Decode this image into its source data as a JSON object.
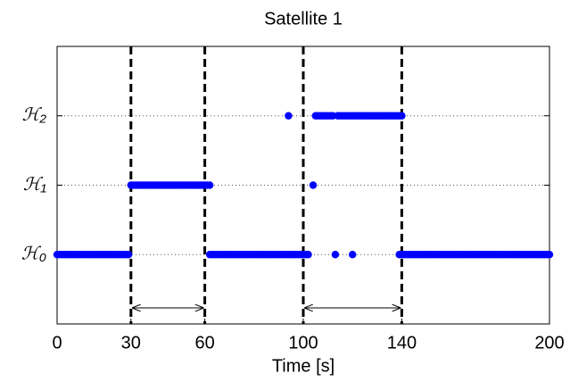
{
  "chart_data": {
    "type": "scatter",
    "title": "Satellite 1",
    "xlabel": "Time [s]",
    "xlim": [
      0,
      200
    ],
    "xticks": [
      0,
      30,
      60,
      100,
      140,
      200
    ],
    "ylim": [
      -1,
      3
    ],
    "yticks": [
      {
        "value": 0,
        "label": "ℋ₀"
      },
      {
        "value": 1,
        "label": "ℋ₁"
      },
      {
        "value": 2,
        "label": "ℋ₂"
      }
    ],
    "grid": true,
    "vlines": [
      30,
      60,
      100,
      140
    ],
    "arrows": [
      [
        30,
        60
      ],
      [
        100,
        140
      ]
    ],
    "series": [
      {
        "color": "#0000ff",
        "level": 0,
        "x": [
          0,
          1,
          2,
          3,
          4,
          5,
          6,
          7,
          8,
          9,
          10,
          11,
          12,
          13,
          14,
          15,
          16,
          17,
          18,
          19,
          20,
          21,
          22,
          23,
          24,
          25,
          26,
          27,
          28,
          29,
          62,
          63,
          64,
          65,
          66,
          67,
          68,
          69,
          70,
          71,
          72,
          73,
          74,
          75,
          76,
          77,
          78,
          79,
          80,
          81,
          82,
          83,
          84,
          85,
          86,
          87,
          88,
          89,
          90,
          91,
          92,
          93,
          94,
          95,
          96,
          97,
          98,
          99,
          100,
          101,
          102,
          113,
          120,
          139,
          140,
          141,
          142,
          143,
          144,
          145,
          146,
          147,
          148,
          149,
          150,
          151,
          152,
          153,
          154,
          155,
          156,
          157,
          158,
          159,
          160,
          161,
          162,
          163,
          164,
          165,
          166,
          167,
          168,
          169,
          170,
          171,
          172,
          173,
          174,
          175,
          176,
          177,
          178,
          179,
          180,
          181,
          182,
          183,
          184,
          185,
          186,
          187,
          188,
          189,
          190,
          191,
          192,
          193,
          194,
          195,
          196,
          197,
          198,
          199,
          200
        ]
      },
      {
        "color": "#0000ff",
        "level": 1,
        "x": [
          30,
          31,
          32,
          33,
          34,
          35,
          36,
          37,
          38,
          39,
          40,
          41,
          42,
          43,
          44,
          45,
          46,
          47,
          48,
          49,
          50,
          51,
          52,
          53,
          54,
          55,
          56,
          57,
          58,
          59,
          60,
          61,
          62,
          104
        ]
      },
      {
        "color": "#0000ff",
        "level": 2,
        "x": [
          94,
          105,
          106,
          107,
          108,
          109,
          110,
          111,
          112,
          114,
          115,
          116,
          117,
          118,
          119,
          120,
          121,
          122,
          123,
          124,
          125,
          126,
          127,
          128,
          129,
          130,
          131,
          132,
          133,
          134,
          135,
          136,
          137,
          138,
          139,
          140
        ]
      }
    ]
  }
}
